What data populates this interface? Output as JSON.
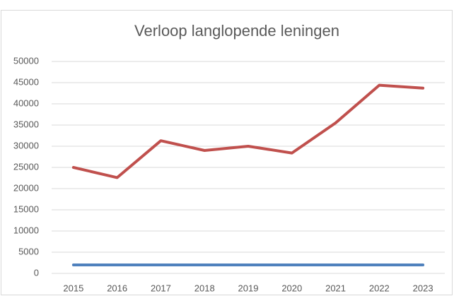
{
  "chart_data": {
    "type": "line",
    "title": "Verloop langlopende leningen",
    "categories": [
      "2015",
      "2016",
      "2017",
      "2018",
      "2019",
      "2020",
      "2021",
      "2022",
      "2023"
    ],
    "series": [
      {
        "color": "#c0504d",
        "values": [
          25000,
          22600,
          31300,
          29000,
          30000,
          28400,
          35500,
          44400,
          43700
        ]
      },
      {
        "color": "#4f81bd",
        "values": [
          2000,
          2000,
          2000,
          2000,
          2000,
          2000,
          2000,
          2000,
          2000
        ]
      }
    ],
    "ylim": [
      0,
      50000
    ],
    "yticks": [
      0,
      5000,
      10000,
      15000,
      20000,
      25000,
      30000,
      35000,
      40000,
      45000,
      50000
    ],
    "grid": true
  }
}
